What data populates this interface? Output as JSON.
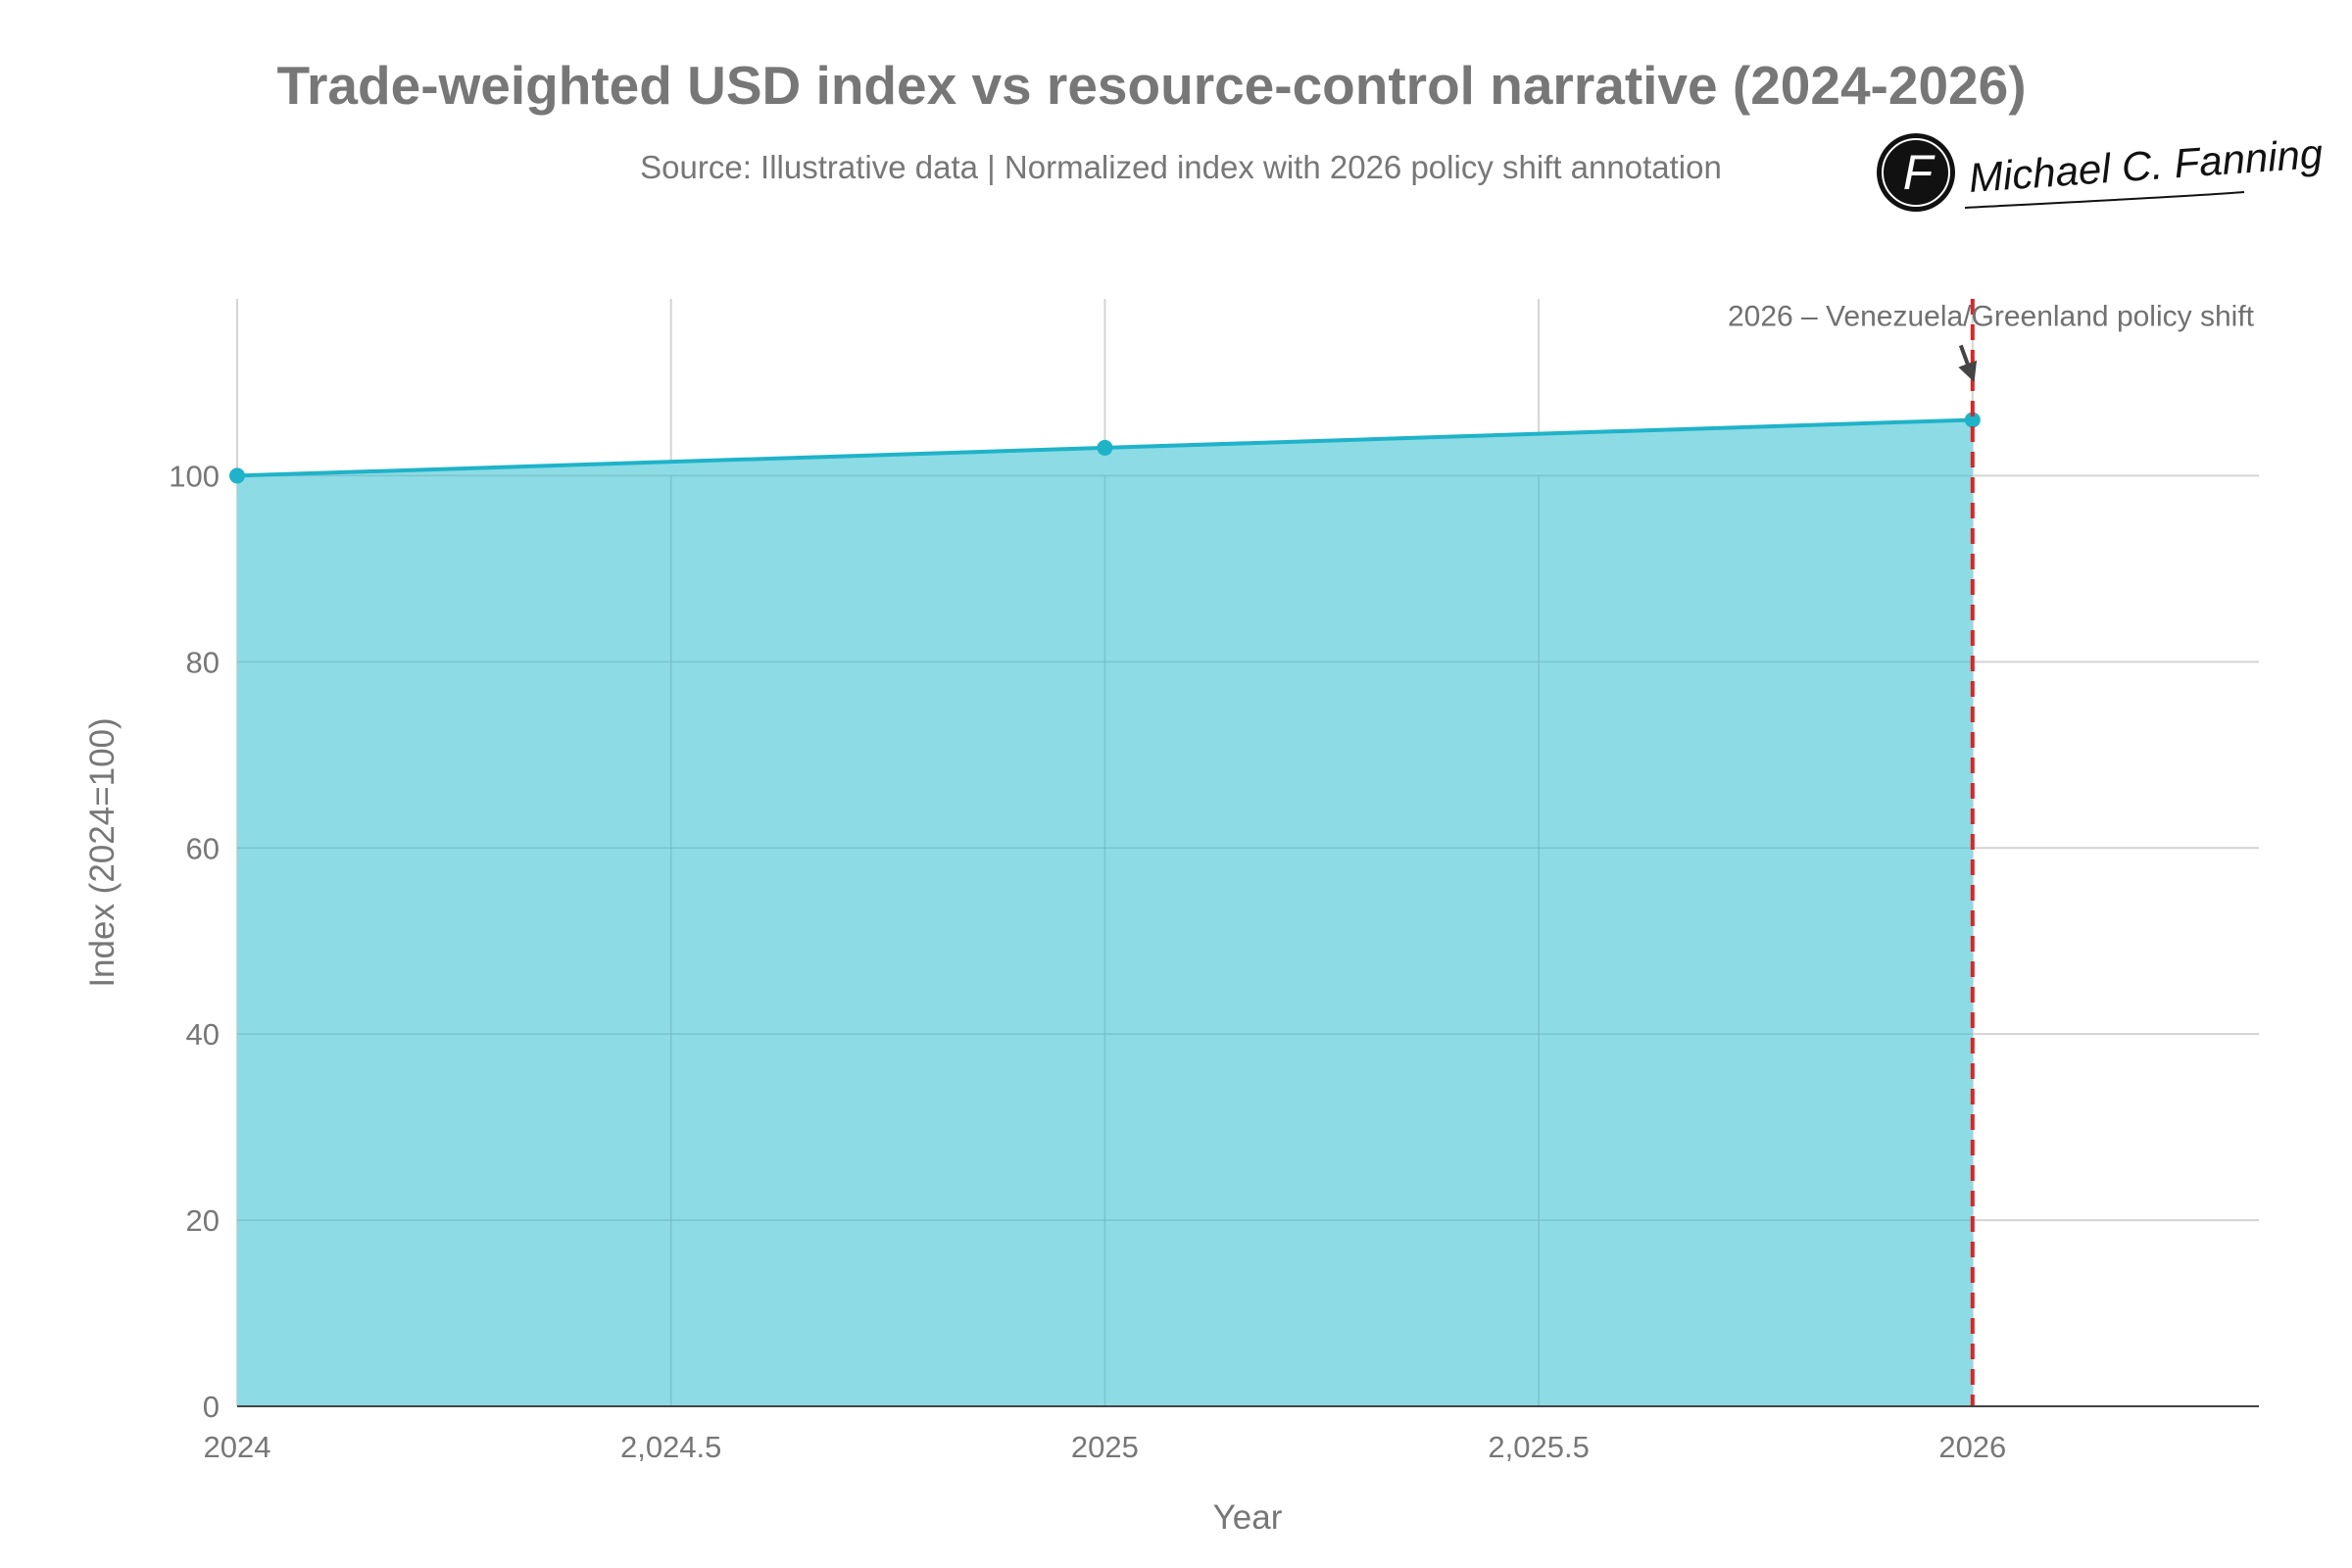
{
  "chart_data": {
    "type": "area",
    "title": "Trade-weighted USD index vs resource-control narrative (2024-2026)",
    "subtitle": "Source: Illustrative data | Normalized index with 2026 policy shift annotation",
    "xlabel": "Year",
    "ylabel": "Index (2024=100)",
    "x": [
      2024,
      2025,
      2026
    ],
    "series": [
      {
        "values": [
          100,
          103,
          106
        ]
      }
    ],
    "xlim": [
      2024,
      2026.33
    ],
    "ylim": [
      0,
      119
    ],
    "x_ticks": [
      2024,
      2024.5,
      2025,
      2025.5,
      2026
    ],
    "x_tick_labels": [
      "2024",
      "2,024.5",
      "2025",
      "2,025.5",
      "2026"
    ],
    "y_ticks": [
      0,
      20,
      40,
      60,
      80,
      100
    ],
    "y_tick_labels": [
      "0",
      "20",
      "40",
      "60",
      "80",
      "100"
    ],
    "grid": true,
    "legend": "none",
    "vline": {
      "x": 2026,
      "style": "dashed"
    },
    "annotation": {
      "text": "2026 – Venezuela/Greenland policy shift",
      "x": 2026,
      "y": 106
    },
    "colors": {
      "line": "#1fb3c9",
      "fill": "#8ddbe4",
      "vline": "#d62728",
      "arrow": "#444444",
      "text": "#777777"
    }
  },
  "logo": {
    "monogram": "F",
    "signature": "Michael C. Fanning"
  }
}
